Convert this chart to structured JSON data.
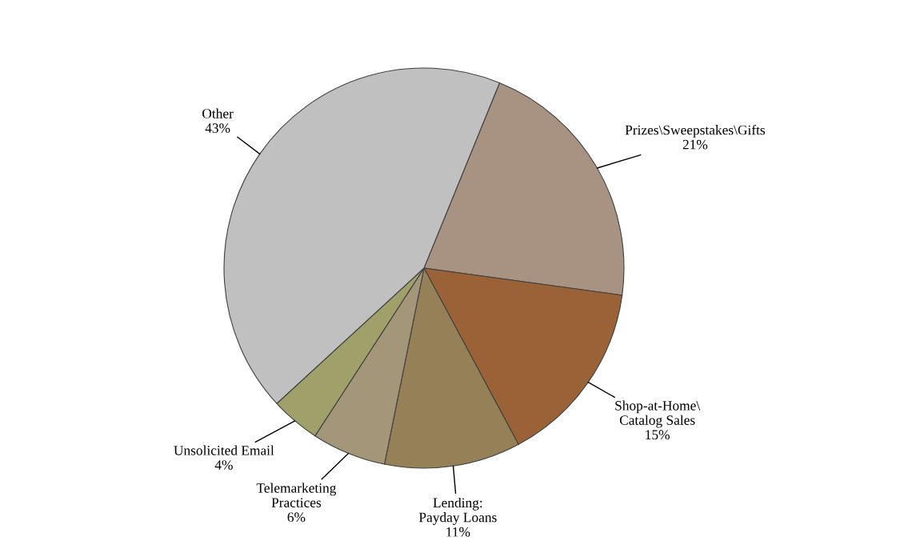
{
  "chart_data": {
    "type": "pie",
    "categories": [
      "Prizes\\Sweepstakes\\Gifts",
      "Shop-at-Home\\\nCatalog Sales",
      "Lending:\nPayday Loans",
      "Telemarketing\nPractices",
      "Unsolicited Email",
      "Other"
    ],
    "values": [
      21,
      15,
      11,
      6,
      4,
      43
    ],
    "colors": [
      "#a89282",
      "#9b6137",
      "#968058",
      "#a39679",
      "#a0a06a",
      "#c0c0c0"
    ],
    "value_labels": [
      "21%",
      "15%",
      "11%",
      "6%",
      "4%",
      "43%"
    ]
  }
}
